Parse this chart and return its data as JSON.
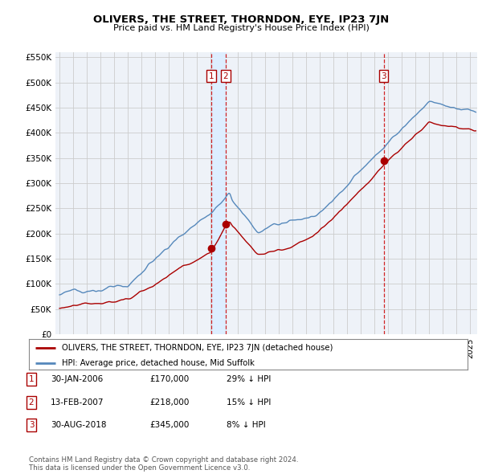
{
  "title": "OLIVERS, THE STREET, THORNDON, EYE, IP23 7JN",
  "subtitle": "Price paid vs. HM Land Registry's House Price Index (HPI)",
  "ylabel_ticks": [
    "£0",
    "£50K",
    "£100K",
    "£150K",
    "£200K",
    "£250K",
    "£300K",
    "£350K",
    "£400K",
    "£450K",
    "£500K",
    "£550K"
  ],
  "ytick_vals": [
    0,
    50000,
    100000,
    150000,
    200000,
    250000,
    300000,
    350000,
    400000,
    450000,
    500000,
    550000
  ],
  "ylim": [
    0,
    560000
  ],
  "xlim_start": 1994.7,
  "xlim_end": 2025.5,
  "sale_dates": [
    2006.08,
    2007.12,
    2018.67
  ],
  "sale_prices": [
    170000,
    218000,
    345000
  ],
  "sale_labels": [
    "1",
    "2",
    "3"
  ],
  "vline_color": "#cc0000",
  "sale_color": "#aa0000",
  "hpi_color": "#5588bb",
  "shade_color": "#ddeeff",
  "legend_entries": [
    "OLIVERS, THE STREET, THORNDON, EYE, IP23 7JN (detached house)",
    "HPI: Average price, detached house, Mid Suffolk"
  ],
  "table_rows": [
    [
      "1",
      "30-JAN-2006",
      "£170,000",
      "29% ↓ HPI"
    ],
    [
      "2",
      "13-FEB-2007",
      "£218,000",
      "15% ↓ HPI"
    ],
    [
      "3",
      "30-AUG-2018",
      "£345,000",
      "8% ↓ HPI"
    ]
  ],
  "footnote": "Contains HM Land Registry data © Crown copyright and database right 2024.\nThis data is licensed under the Open Government Licence v3.0.",
  "bg_color": "#ffffff",
  "grid_color": "#cccccc",
  "plot_bg": "#eef2f8"
}
